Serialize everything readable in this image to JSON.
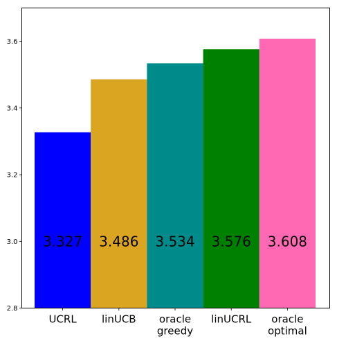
{
  "chart_data": {
    "type": "bar",
    "categories": [
      [
        "UCRL"
      ],
      [
        "linUCB"
      ],
      [
        "oracle",
        "greedy"
      ],
      [
        "linUCRL"
      ],
      [
        "oracle",
        "optimal"
      ]
    ],
    "values": [
      3.327,
      3.486,
      3.534,
      3.576,
      3.608
    ],
    "value_labels": [
      "3.327",
      "3.486",
      "3.534",
      "3.576",
      "3.608"
    ],
    "colors": [
      "#0000ff",
      "#daa520",
      "#008b8b",
      "#008000",
      "#ff69b4"
    ],
    "value_label_y": 3.0,
    "ylim": [
      2.8,
      3.7
    ],
    "yticks": [
      2.8,
      3.0,
      3.2,
      3.4,
      3.6
    ],
    "ytick_labels": [
      "2.8",
      "3.0",
      "3.2",
      "3.4",
      "3.6"
    ],
    "title": "",
    "xlabel": "",
    "ylabel": "",
    "grid": false,
    "legend": "none"
  }
}
